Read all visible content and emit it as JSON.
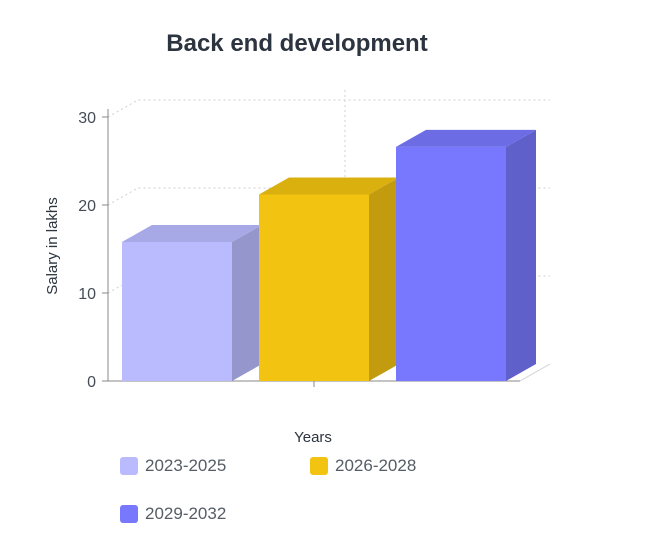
{
  "chart_data": {
    "type": "bar",
    "title": "Back end development",
    "xlabel": "Years",
    "ylabel": "Salary in lakhs",
    "ylim": [
      0,
      30
    ],
    "yticks": [
      0,
      10,
      20,
      30
    ],
    "grid": true,
    "three_d": true,
    "legend_position": "bottom-left",
    "series": [
      {
        "name": "2023-2025",
        "value": 15.8,
        "color": "#babbff"
      },
      {
        "name": "2026-2028",
        "value": 21.2,
        "color": "#f2c311"
      },
      {
        "name": "2029-2032",
        "value": 26.6,
        "color": "#7878fe"
      }
    ]
  }
}
